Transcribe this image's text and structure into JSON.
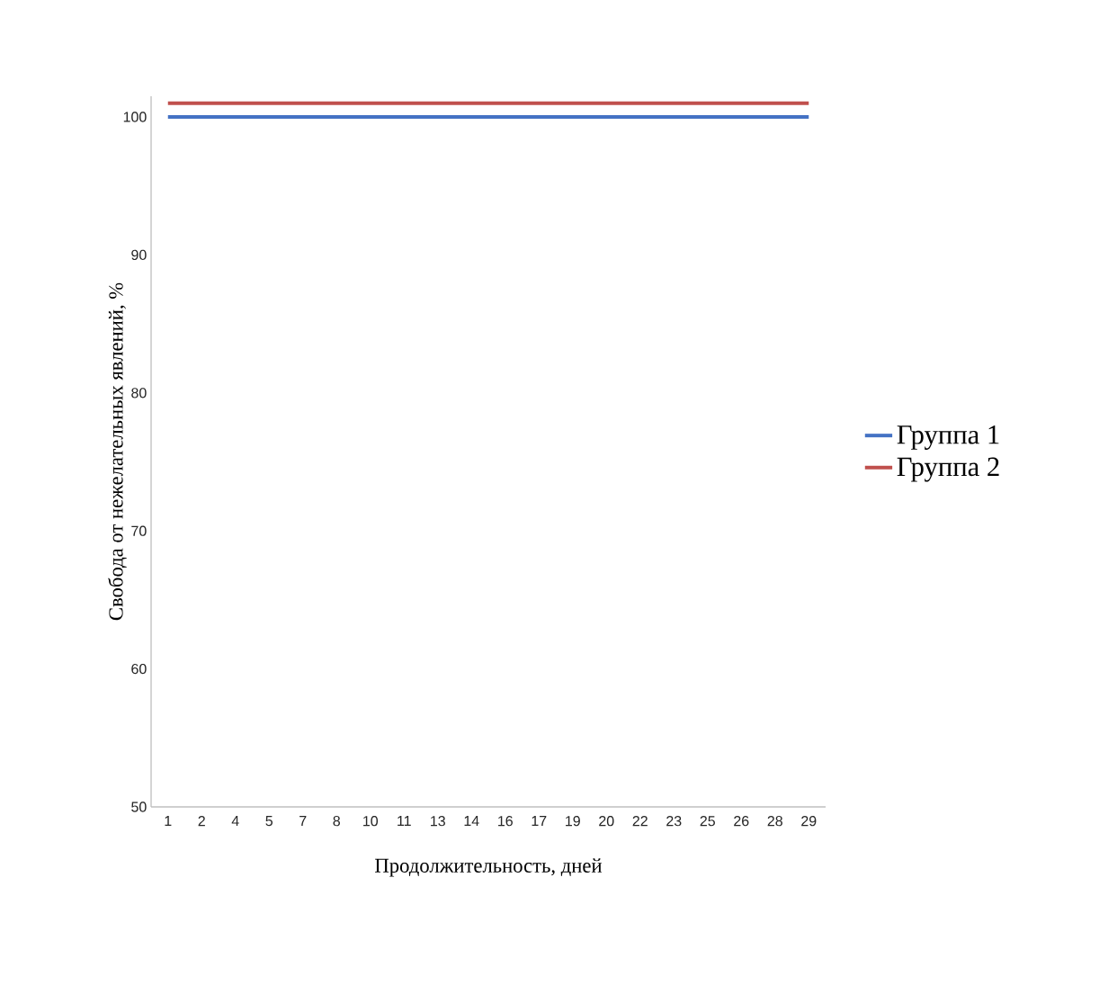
{
  "chart_data": {
    "type": "line",
    "xlabel": "Продолжительность, дней",
    "ylabel": "Свобода от нежелательных явлений, %",
    "categories": [
      "1",
      "2",
      "4",
      "5",
      "7",
      "8",
      "10",
      "11",
      "13",
      "14",
      "16",
      "17",
      "19",
      "20",
      "22",
      "23",
      "25",
      "26",
      "28",
      "29"
    ],
    "series": [
      {
        "name": "Группа 1",
        "color": "#4472c4",
        "values": [
          100,
          100,
          100,
          100,
          100,
          100,
          100,
          100,
          100,
          100,
          100,
          100,
          100,
          100,
          100,
          100,
          100,
          100,
          100,
          100
        ]
      },
      {
        "name": "Группа 2",
        "color": "#c0504d",
        "values": [
          101,
          101,
          101,
          101,
          101,
          101,
          101,
          101,
          101,
          101,
          101,
          101,
          101,
          101,
          101,
          101,
          101,
          101,
          101,
          101
        ]
      }
    ],
    "ylim": [
      50,
      101.5
    ],
    "yticks": [
      50,
      60,
      70,
      80,
      90,
      100
    ],
    "grid": false,
    "legend": "right",
    "marker": "none",
    "line_style": "solid"
  }
}
